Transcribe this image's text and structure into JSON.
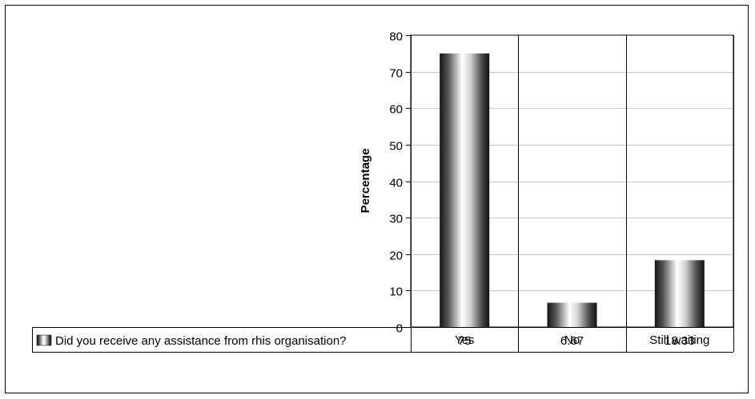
{
  "chart_data": {
    "type": "bar",
    "ylabel": "Percentage",
    "ylim": [
      0,
      80
    ],
    "yticks": [
      0,
      10,
      20,
      30,
      40,
      50,
      60,
      70,
      80
    ],
    "categories": [
      "Yes",
      "No",
      "Still waiting"
    ],
    "series": [
      {
        "name": "Did you receive any assistance from rhis organisation?",
        "values": [
          75,
          6.67,
          18.33
        ]
      }
    ],
    "table_values": [
      "75",
      "6.67",
      "18.33"
    ],
    "grid": true,
    "legend": "data-table",
    "bar_style": "gray metallic gradient"
  }
}
